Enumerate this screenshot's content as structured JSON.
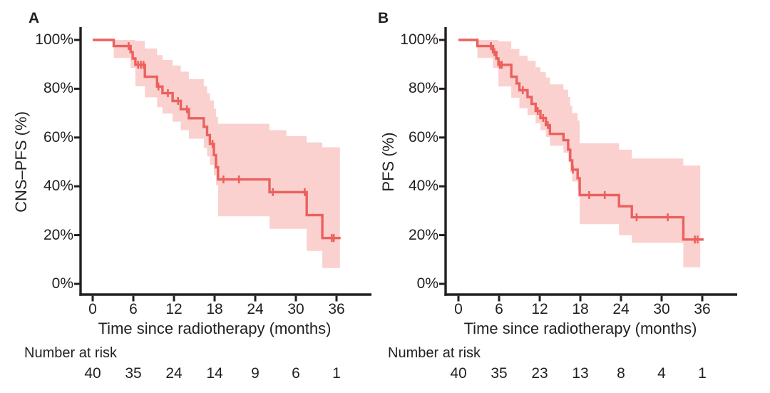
{
  "figure": {
    "background": "#ffffff",
    "curve_color": "#ec605d",
    "ci_band_color": "#fad1cf",
    "axis_color": "#231f20",
    "text_color": "#231f20",
    "description": "Two Kaplan-Meier survival panels with 95% confidence bands and censor tick marks"
  },
  "chart_data": [
    {
      "type": "line",
      "subtype": "kaplan_meier_step_with_ci_band",
      "panel_label": "A",
      "title": "",
      "xlabel": "Time since radiotherapy (months)",
      "ylabel": "CNS–PFS (%)",
      "units": "percent",
      "grid": false,
      "legend": "none",
      "xlim": [
        0,
        41
      ],
      "ylim": [
        0,
        100
      ],
      "x_ticks": [
        0,
        6,
        12,
        18,
        24,
        30,
        36
      ],
      "y_ticks_percent": [
        0,
        20,
        40,
        60,
        80,
        100
      ],
      "y_tick_labels": [
        "0%",
        "20%",
        "40%",
        "60%",
        "80%",
        "100%"
      ],
      "survival_steps_pct": [
        [
          0,
          100
        ],
        [
          3.1,
          97.5
        ],
        [
          5.6,
          95.0
        ],
        [
          5.9,
          92.4
        ],
        [
          6.3,
          89.8
        ],
        [
          7.7,
          84.9
        ],
        [
          9.5,
          80.9
        ],
        [
          10.3,
          78.2
        ],
        [
          11.8,
          75.0
        ],
        [
          13.0,
          71.6
        ],
        [
          14.2,
          67.9
        ],
        [
          16.4,
          64.4
        ],
        [
          16.9,
          61.0
        ],
        [
          17.3,
          57.4
        ],
        [
          17.9,
          52.8
        ],
        [
          18.2,
          47.8
        ],
        [
          18.5,
          42.8
        ],
        [
          26.1,
          37.6
        ],
        [
          31.6,
          28.2
        ],
        [
          33.9,
          18.8
        ]
      ],
      "curve_end_month": 36.6,
      "censor_marks_pct": [
        [
          5.3,
          97.5
        ],
        [
          6.7,
          89.8
        ],
        [
          7.1,
          89.8
        ],
        [
          7.5,
          89.8
        ],
        [
          9.7,
          80.9
        ],
        [
          11.1,
          78.2
        ],
        [
          12.6,
          75.0
        ],
        [
          13.9,
          71.6
        ],
        [
          17.7,
          57.4
        ],
        [
          19.3,
          42.8
        ],
        [
          21.6,
          42.8
        ],
        [
          26.6,
          37.6
        ],
        [
          31.3,
          37.6
        ],
        [
          35.3,
          18.8
        ],
        [
          35.6,
          18.8
        ]
      ],
      "ci_band_pct": [
        [
          3.1,
          100,
          92.6
        ],
        [
          5.6,
          100,
          88.6
        ],
        [
          6.3,
          99.6,
          81.0
        ],
        [
          7.7,
          96.5,
          76.5
        ],
        [
          9.5,
          93.8,
          72.5
        ],
        [
          10.3,
          91.8,
          69.8
        ],
        [
          11.8,
          89.5,
          66.5
        ],
        [
          13.0,
          87.0,
          63.0
        ],
        [
          14.2,
          84.0,
          59.5
        ],
        [
          16.4,
          81.0,
          55.8
        ],
        [
          16.9,
          78.2,
          52.3
        ],
        [
          17.3,
          75.2,
          48.8
        ],
        [
          17.9,
          71.8,
          44.5
        ],
        [
          18.2,
          68.5,
          40.5
        ],
        [
          18.5,
          65.6,
          27.7
        ],
        [
          26.1,
          63.0,
          22.6
        ],
        [
          28.6,
          60.6,
          22.6
        ],
        [
          31.6,
          58.0,
          13.5
        ],
        [
          33.9,
          56.0,
          6.5
        ]
      ],
      "band_end_month": 36.5,
      "number_at_risk_label": "Number at risk",
      "number_at_risk": {
        "months": [
          0,
          6,
          12,
          18,
          24,
          30,
          36
        ],
        "counts": [
          40,
          35,
          24,
          14,
          9,
          6,
          1
        ]
      }
    },
    {
      "type": "line",
      "subtype": "kaplan_meier_step_with_ci_band",
      "panel_label": "B",
      "title": "",
      "xlabel": "Time since radiotherapy (months)",
      "ylabel": "PFS (%)",
      "units": "percent",
      "grid": false,
      "legend": "none",
      "xlim": [
        0,
        41
      ],
      "ylim": [
        0,
        100
      ],
      "x_ticks": [
        0,
        6,
        12,
        18,
        24,
        30,
        36
      ],
      "y_ticks_percent": [
        0,
        20,
        40,
        60,
        80,
        100
      ],
      "y_tick_labels": [
        "0%",
        "20%",
        "40%",
        "60%",
        "80%",
        "100%"
      ],
      "survival_steps_pct": [
        [
          0,
          100
        ],
        [
          2.8,
          97.5
        ],
        [
          5.1,
          95.0
        ],
        [
          5.6,
          92.4
        ],
        [
          5.9,
          89.8
        ],
        [
          7.8,
          84.9
        ],
        [
          8.6,
          82.2
        ],
        [
          9.0,
          79.4
        ],
        [
          10.2,
          76.6
        ],
        [
          10.8,
          73.8
        ],
        [
          11.4,
          70.9
        ],
        [
          12.1,
          68.0
        ],
        [
          12.9,
          65.1
        ],
        [
          13.5,
          61.5
        ],
        [
          15.5,
          58.9
        ],
        [
          16.2,
          55.0
        ],
        [
          16.5,
          50.6
        ],
        [
          16.8,
          46.8
        ],
        [
          17.6,
          43.3
        ],
        [
          17.9,
          36.4
        ],
        [
          23.7,
          31.8
        ],
        [
          25.6,
          27.3
        ],
        [
          33.2,
          18.2
        ]
      ],
      "curve_end_month": 36.2,
      "censor_marks_pct": [
        [
          4.8,
          97.5
        ],
        [
          5.3,
          95.0
        ],
        [
          6.1,
          89.8
        ],
        [
          6.4,
          89.8
        ],
        [
          9.5,
          79.4
        ],
        [
          11.7,
          70.9
        ],
        [
          12.5,
          68.0
        ],
        [
          13.2,
          65.1
        ],
        [
          16.9,
          46.8
        ],
        [
          19.3,
          36.4
        ],
        [
          21.6,
          36.4
        ],
        [
          26.3,
          27.3
        ],
        [
          30.9,
          27.3
        ],
        [
          34.9,
          18.2
        ],
        [
          35.3,
          18.2
        ]
      ],
      "ci_band_pct": [
        [
          2.8,
          100,
          92.6
        ],
        [
          5.1,
          100,
          88.6
        ],
        [
          5.9,
          99.4,
          80.9
        ],
        [
          7.8,
          96.3,
          76.3
        ],
        [
          9.0,
          93.5,
          72.0
        ],
        [
          10.2,
          91.4,
          69.2
        ],
        [
          11.4,
          88.8,
          65.8
        ],
        [
          12.1,
          86.8,
          63.0
        ],
        [
          12.9,
          84.6,
          60.2
        ],
        [
          13.5,
          81.8,
          56.6
        ],
        [
          15.5,
          79.6,
          53.8
        ],
        [
          16.2,
          76.6,
          50.2
        ],
        [
          16.5,
          73.0,
          45.8
        ],
        [
          16.8,
          70.0,
          42.0
        ],
        [
          17.6,
          67.0,
          38.5
        ],
        [
          17.9,
          57.7,
          24.5
        ],
        [
          23.7,
          55.0,
          20.0
        ],
        [
          25.6,
          51.4,
          16.8
        ],
        [
          33.2,
          48.5,
          6.8
        ]
      ],
      "band_end_month": 35.7,
      "number_at_risk_label": "Number at risk",
      "number_at_risk": {
        "months": [
          0,
          6,
          12,
          18,
          24,
          30,
          36
        ],
        "counts": [
          40,
          35,
          23,
          13,
          8,
          4,
          1
        ]
      }
    }
  ]
}
